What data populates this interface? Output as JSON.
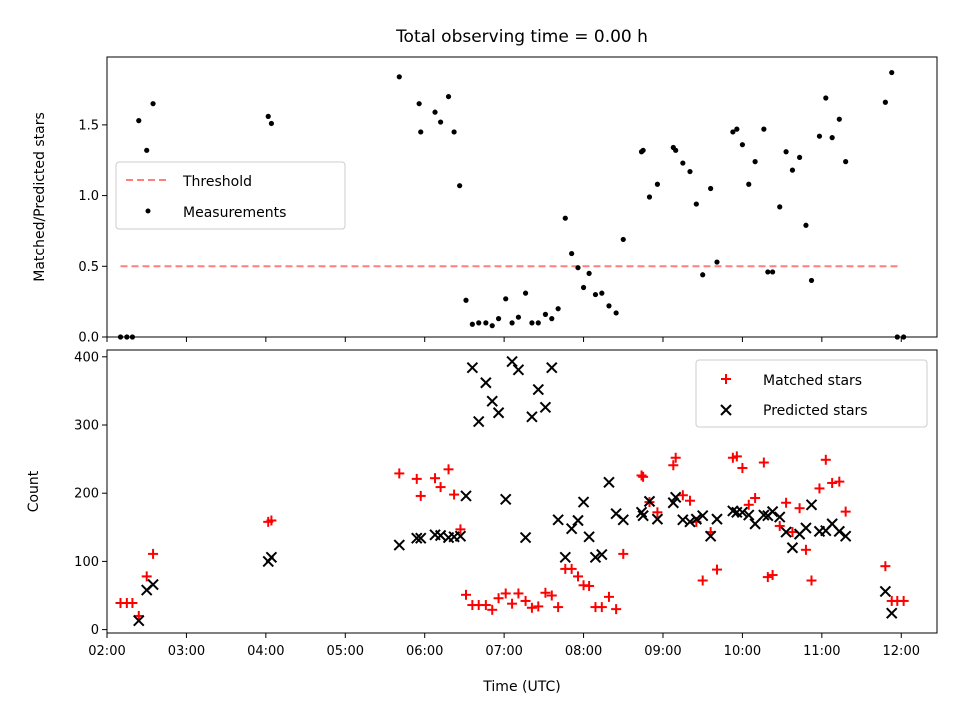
{
  "chart_data": [
    {
      "type": "scatter",
      "panel": "top",
      "title": "Total observing time = 0.00 h",
      "ylabel": "Matched/Predicted stars",
      "xlabel": "",
      "xlim": [
        2.0,
        12.45
      ],
      "ylim": [
        0.0,
        1.98
      ],
      "yticks": [
        0.0,
        0.5,
        1.0,
        1.5
      ],
      "ytick_labels": [
        "0.0",
        "0.5",
        "1.0",
        "1.5"
      ],
      "grid": false,
      "legend_position": "center-left",
      "series": [
        {
          "name": "Threshold",
          "style": "dashed-line",
          "color": "#ff7f7f",
          "x": [
            2.17,
            12.0
          ],
          "y": [
            0.5,
            0.5
          ]
        },
        {
          "name": "Measurements",
          "style": "points",
          "color": "#000000",
          "points": [
            [
              2.17,
              0.0
            ],
            [
              2.25,
              0.0
            ],
            [
              2.32,
              0.0
            ],
            [
              2.4,
              1.53
            ],
            [
              2.5,
              1.32
            ],
            [
              2.58,
              1.65
            ],
            [
              4.03,
              1.56
            ],
            [
              4.07,
              1.51
            ],
            [
              5.68,
              1.84
            ],
            [
              5.93,
              1.65
            ],
            [
              5.95,
              1.45
            ],
            [
              6.13,
              1.59
            ],
            [
              6.2,
              1.52
            ],
            [
              6.3,
              1.7
            ],
            [
              6.37,
              1.45
            ],
            [
              6.44,
              1.07
            ],
            [
              6.52,
              0.26
            ],
            [
              6.6,
              0.09
            ],
            [
              6.68,
              0.1
            ],
            [
              6.77,
              0.1
            ],
            [
              6.85,
              0.08
            ],
            [
              6.93,
              0.13
            ],
            [
              7.02,
              0.27
            ],
            [
              7.1,
              0.1
            ],
            [
              7.18,
              0.14
            ],
            [
              7.27,
              0.31
            ],
            [
              7.35,
              0.1
            ],
            [
              7.43,
              0.1
            ],
            [
              7.52,
              0.16
            ],
            [
              7.6,
              0.13
            ],
            [
              7.68,
              0.2
            ],
            [
              7.77,
              0.84
            ],
            [
              7.85,
              0.59
            ],
            [
              7.93,
              0.49
            ],
            [
              8.0,
              0.35
            ],
            [
              8.07,
              0.45
            ],
            [
              8.15,
              0.3
            ],
            [
              8.23,
              0.31
            ],
            [
              8.32,
              0.22
            ],
            [
              8.41,
              0.17
            ],
            [
              8.5,
              0.69
            ],
            [
              8.73,
              1.31
            ],
            [
              8.75,
              1.32
            ],
            [
              8.83,
              0.99
            ],
            [
              8.93,
              1.08
            ],
            [
              9.13,
              1.34
            ],
            [
              9.16,
              1.32
            ],
            [
              9.25,
              1.23
            ],
            [
              9.34,
              1.17
            ],
            [
              9.42,
              0.94
            ],
            [
              9.5,
              0.44
            ],
            [
              9.6,
              1.05
            ],
            [
              9.68,
              0.53
            ],
            [
              9.88,
              1.45
            ],
            [
              9.93,
              1.47
            ],
            [
              10.0,
              1.36
            ],
            [
              10.08,
              1.08
            ],
            [
              10.16,
              1.24
            ],
            [
              10.27,
              1.47
            ],
            [
              10.32,
              0.46
            ],
            [
              10.38,
              0.46
            ],
            [
              10.47,
              0.92
            ],
            [
              10.55,
              1.31
            ],
            [
              10.63,
              1.18
            ],
            [
              10.72,
              1.27
            ],
            [
              10.8,
              0.79
            ],
            [
              10.87,
              0.4
            ],
            [
              10.97,
              1.42
            ],
            [
              11.05,
              1.69
            ],
            [
              11.13,
              1.41
            ],
            [
              11.22,
              1.54
            ],
            [
              11.3,
              1.24
            ],
            [
              11.8,
              1.66
            ],
            [
              11.88,
              1.87
            ],
            [
              11.95,
              0.0
            ],
            [
              12.03,
              0.0
            ]
          ]
        }
      ]
    },
    {
      "type": "scatter",
      "panel": "bottom",
      "title": "",
      "xlabel": "Time (UTC)",
      "ylabel": "Count",
      "xlim": [
        2.0,
        12.45
      ],
      "ylim": [
        -5,
        410
      ],
      "xticks": [
        2,
        3,
        4,
        5,
        6,
        7,
        8,
        9,
        10,
        11,
        12
      ],
      "xtick_labels": [
        "02:00",
        "03:00",
        "04:00",
        "05:00",
        "06:00",
        "07:00",
        "08:00",
        "09:00",
        "10:00",
        "11:00",
        "12:00"
      ],
      "yticks": [
        0,
        100,
        200,
        300,
        400
      ],
      "ytick_labels": [
        "0",
        "100",
        "200",
        "300",
        "400"
      ],
      "grid": false,
      "legend_position": "top-right",
      "series": [
        {
          "name": "Matched stars",
          "marker": "plus",
          "color": "#ff0000",
          "points": [
            [
              2.17,
              39
            ],
            [
              2.25,
              39
            ],
            [
              2.32,
              39
            ],
            [
              2.4,
              20
            ],
            [
              2.5,
              78
            ],
            [
              2.58,
              111
            ],
            [
              4.03,
              158
            ],
            [
              4.07,
              160
            ],
            [
              5.68,
              229
            ],
            [
              5.9,
              221
            ],
            [
              5.95,
              196
            ],
            [
              6.13,
              222
            ],
            [
              6.2,
              209
            ],
            [
              6.3,
              235
            ],
            [
              6.37,
              198
            ],
            [
              6.45,
              147
            ],
            [
              6.52,
              51
            ],
            [
              6.6,
              36
            ],
            [
              6.68,
              36
            ],
            [
              6.77,
              36
            ],
            [
              6.85,
              29
            ],
            [
              6.93,
              46
            ],
            [
              7.02,
              53
            ],
            [
              7.1,
              38
            ],
            [
              7.18,
              53
            ],
            [
              7.27,
              42
            ],
            [
              7.35,
              32
            ],
            [
              7.43,
              34
            ],
            [
              7.52,
              54
            ],
            [
              7.6,
              50
            ],
            [
              7.68,
              33
            ],
            [
              7.77,
              89
            ],
            [
              7.85,
              89
            ],
            [
              7.93,
              78
            ],
            [
              8.0,
              65
            ],
            [
              8.07,
              64
            ],
            [
              8.15,
              33
            ],
            [
              8.23,
              33
            ],
            [
              8.32,
              48
            ],
            [
              8.41,
              30
            ],
            [
              8.5,
              111
            ],
            [
              8.73,
              226
            ],
            [
              8.75,
              224
            ],
            [
              8.83,
              187
            ],
            [
              8.93,
              172
            ],
            [
              9.13,
              241
            ],
            [
              9.16,
              252
            ],
            [
              9.25,
              197
            ],
            [
              9.34,
              189
            ],
            [
              9.42,
              158
            ],
            [
              9.5,
              72
            ],
            [
              9.6,
              143
            ],
            [
              9.68,
              88
            ],
            [
              9.88,
              252
            ],
            [
              9.93,
              254
            ],
            [
              10.0,
              237
            ],
            [
              10.08,
              183
            ],
            [
              10.16,
              193
            ],
            [
              10.27,
              245
            ],
            [
              10.32,
              77
            ],
            [
              10.38,
              80
            ],
            [
              10.47,
              152
            ],
            [
              10.55,
              186
            ],
            [
              10.63,
              143
            ],
            [
              10.72,
              178
            ],
            [
              10.8,
              117
            ],
            [
              10.87,
              72
            ],
            [
              10.97,
              207
            ],
            [
              11.05,
              249
            ],
            [
              11.13,
              215
            ],
            [
              11.22,
              217
            ],
            [
              11.3,
              173
            ],
            [
              11.8,
              93
            ],
            [
              11.88,
              42
            ],
            [
              11.95,
              42
            ],
            [
              12.03,
              42
            ]
          ]
        },
        {
          "name": "Predicted stars",
          "marker": "x",
          "color": "#000000",
          "points": [
            [
              2.4,
              13
            ],
            [
              2.5,
              58
            ],
            [
              2.58,
              66
            ],
            [
              4.03,
              100
            ],
            [
              4.07,
              106
            ],
            [
              5.68,
              124
            ],
            [
              5.9,
              134
            ],
            [
              5.95,
              134
            ],
            [
              6.13,
              139
            ],
            [
              6.2,
              138
            ],
            [
              6.3,
              135
            ],
            [
              6.37,
              136
            ],
            [
              6.45,
              137
            ],
            [
              6.52,
              196
            ],
            [
              6.6,
              384
            ],
            [
              6.68,
              305
            ],
            [
              6.77,
              362
            ],
            [
              6.85,
              335
            ],
            [
              6.93,
              318
            ],
            [
              7.02,
              191
            ],
            [
              7.1,
              393
            ],
            [
              7.18,
              381
            ],
            [
              7.27,
              135
            ],
            [
              7.35,
              312
            ],
            [
              7.43,
              352
            ],
            [
              7.52,
              326
            ],
            [
              7.6,
              384
            ],
            [
              7.68,
              161
            ],
            [
              7.77,
              106
            ],
            [
              7.85,
              148
            ],
            [
              7.93,
              160
            ],
            [
              8.0,
              187
            ],
            [
              8.07,
              136
            ],
            [
              8.15,
              106
            ],
            [
              8.23,
              110
            ],
            [
              8.32,
              216
            ],
            [
              8.41,
              170
            ],
            [
              8.5,
              161
            ],
            [
              8.73,
              172
            ],
            [
              8.75,
              167
            ],
            [
              8.83,
              188
            ],
            [
              8.93,
              162
            ],
            [
              9.13,
              186
            ],
            [
              9.16,
              194
            ],
            [
              9.25,
              161
            ],
            [
              9.34,
              158
            ],
            [
              9.42,
              162
            ],
            [
              9.5,
              167
            ],
            [
              9.6,
              137
            ],
            [
              9.68,
              162
            ],
            [
              9.88,
              174
            ],
            [
              9.93,
              172
            ],
            [
              10.0,
              172
            ],
            [
              10.08,
              168
            ],
            [
              10.16,
              155
            ],
            [
              10.27,
              168
            ],
            [
              10.32,
              167
            ],
            [
              10.38,
              173
            ],
            [
              10.47,
              165
            ],
            [
              10.55,
              143
            ],
            [
              10.63,
              120
            ],
            [
              10.72,
              140
            ],
            [
              10.8,
              149
            ],
            [
              10.87,
              183
            ],
            [
              10.97,
              144
            ],
            [
              11.05,
              145
            ],
            [
              11.13,
              155
            ],
            [
              11.22,
              144
            ],
            [
              11.3,
              137
            ],
            [
              11.8,
              56
            ],
            [
              11.88,
              24
            ]
          ]
        }
      ]
    }
  ]
}
